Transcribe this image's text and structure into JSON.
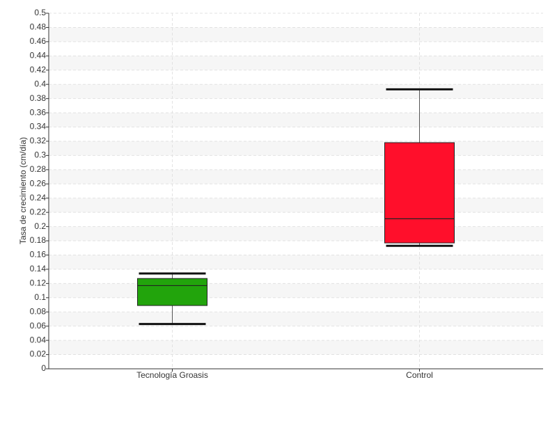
{
  "chart_data": {
    "type": "box",
    "y_label": "Tasa de crecimiento (cm/día)",
    "categories": [
      "Tecnología Groasis",
      "Control"
    ],
    "boxes": [
      {
        "color": "#22a40c",
        "min": 0.063,
        "q1": 0.089,
        "median": 0.117,
        "q3": 0.127,
        "max": 0.134
      },
      {
        "color": "#ff0f2b",
        "min": 0.173,
        "q1": 0.177,
        "median": 0.211,
        "q3": 0.318,
        "max": 0.393
      }
    ],
    "ylim": [
      0,
      0.5
    ],
    "yticks": [
      0,
      0.02,
      0.04,
      0.06,
      0.08,
      0.1,
      0.12,
      0.14,
      0.16,
      0.18,
      0.2,
      0.22,
      0.24,
      0.26,
      0.28,
      0.3,
      0.32,
      0.34,
      0.36,
      0.38,
      0.4,
      0.42,
      0.44,
      0.46,
      0.48,
      0.5
    ],
    "grid": true
  }
}
